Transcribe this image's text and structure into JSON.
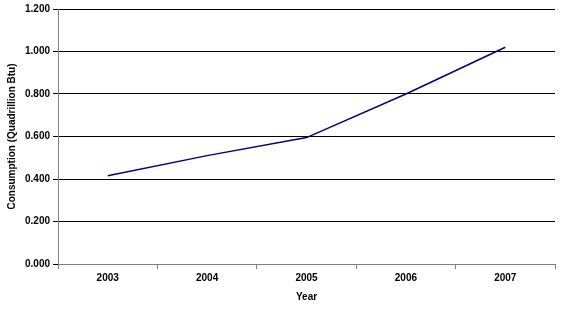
{
  "chart_data": {
    "type": "line",
    "x_label": "Year",
    "y_label": "Consumption (Quadrillion Btu)",
    "categories": [
      "2003",
      "2004",
      "2005",
      "2006",
      "2007"
    ],
    "values": [
      0.415,
      0.51,
      0.595,
      0.8,
      1.02
    ],
    "color": "#000080",
    "marker": "none",
    "ylim": [
      0,
      1.2
    ],
    "yticks": [
      {
        "value": 0,
        "label": "0.000"
      },
      {
        "value": 0.2,
        "label": "0.200"
      },
      {
        "value": 0.4,
        "label": "0.400"
      },
      {
        "value": 0.6,
        "label": "0.600"
      },
      {
        "value": 0.8,
        "label": "0.800"
      },
      {
        "value": 1.0,
        "label": "1.000"
      },
      {
        "value": 1.2,
        "label": "1.200"
      }
    ],
    "grid": true
  }
}
